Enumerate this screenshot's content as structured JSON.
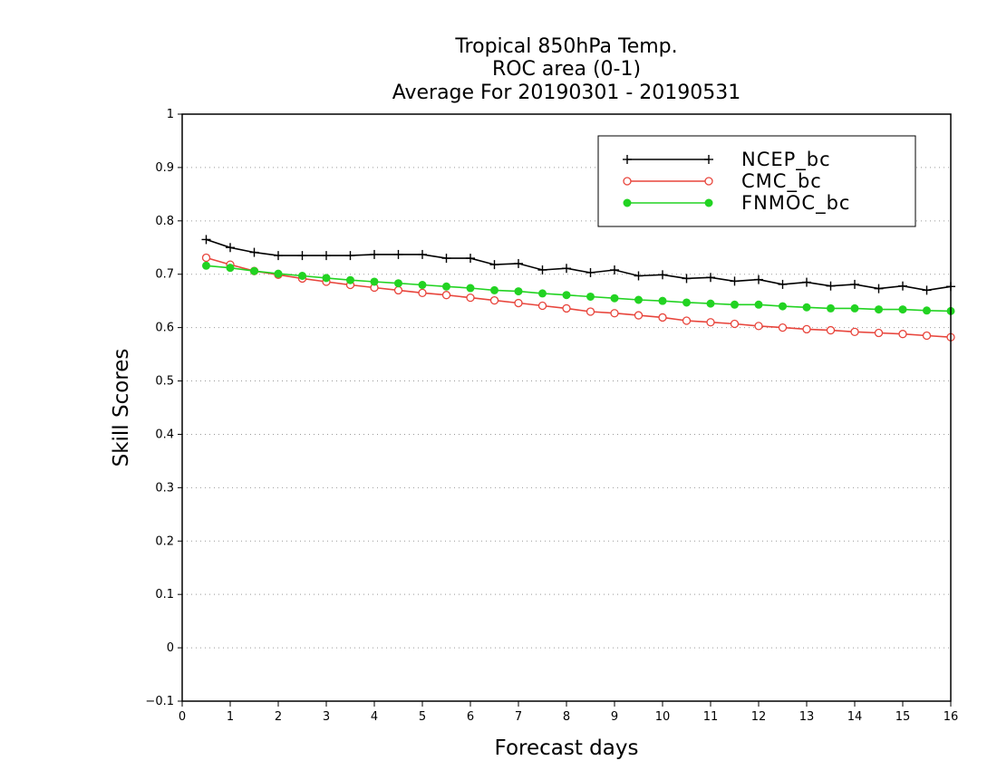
{
  "chart_data": {
    "type": "line",
    "title": [
      "Tropical 850hPa Temp.",
      "ROC area (0-1)",
      "Average For 20190301 - 20190531"
    ],
    "xlabel": "Forecast days",
    "ylabel": "Skill Scores",
    "xlim": [
      0,
      16
    ],
    "ylim": [
      -0.1,
      1
    ],
    "xticks": [
      0,
      1,
      2,
      3,
      4,
      5,
      6,
      7,
      8,
      9,
      10,
      11,
      12,
      13,
      14,
      15,
      16
    ],
    "yticks": [
      -0.1,
      0,
      0.1,
      0.2,
      0.3,
      0.4,
      0.5,
      0.6,
      0.7,
      0.8,
      0.9,
      1
    ],
    "ytick_labels": [
      "−0.1",
      "0",
      "0.1",
      "0.2",
      "0.3",
      "0.4",
      "0.5",
      "0.6",
      "0.7",
      "0.8",
      "0.9",
      "1"
    ],
    "grid": "horizontal-dotted",
    "legend_position": "top-right",
    "x": [
      0.5,
      1,
      1.5,
      2,
      2.5,
      3,
      3.5,
      4,
      4.5,
      5,
      5.5,
      6,
      6.5,
      7,
      7.5,
      8,
      8.5,
      9,
      9.5,
      10,
      10.5,
      11,
      11.5,
      12,
      12.5,
      13,
      13.5,
      14,
      14.5,
      15,
      15.5,
      16
    ],
    "series": [
      {
        "name": "NCEP_bc",
        "color": "#000000",
        "marker": "plus",
        "values": [
          0.765,
          0.75,
          0.741,
          0.735,
          0.735,
          0.735,
          0.735,
          0.737,
          0.737,
          0.737,
          0.73,
          0.73,
          0.718,
          0.72,
          0.708,
          0.711,
          0.703,
          0.708,
          0.697,
          0.699,
          0.692,
          0.694,
          0.687,
          0.69,
          0.681,
          0.685,
          0.678,
          0.681,
          0.673,
          0.678,
          0.67,
          0.677
        ]
      },
      {
        "name": "CMC_bc",
        "color": "#e8453c",
        "marker": "open-circle",
        "values": [
          0.731,
          0.718,
          0.706,
          0.699,
          0.692,
          0.686,
          0.68,
          0.675,
          0.67,
          0.665,
          0.661,
          0.656,
          0.651,
          0.646,
          0.641,
          0.636,
          0.63,
          0.627,
          0.623,
          0.619,
          0.613,
          0.61,
          0.607,
          0.603,
          0.6,
          0.597,
          0.595,
          0.592,
          0.59,
          0.588,
          0.585,
          0.582
        ]
      },
      {
        "name": "FNMOC_bc",
        "color": "#22d322",
        "marker": "filled-circle",
        "values": [
          0.716,
          0.712,
          0.706,
          0.701,
          0.697,
          0.693,
          0.689,
          0.686,
          0.683,
          0.68,
          0.677,
          0.674,
          0.67,
          0.668,
          0.664,
          0.661,
          0.658,
          0.655,
          0.652,
          0.65,
          0.647,
          0.645,
          0.643,
          0.643,
          0.64,
          0.638,
          0.636,
          0.636,
          0.634,
          0.634,
          0.632,
          0.631
        ]
      }
    ]
  }
}
